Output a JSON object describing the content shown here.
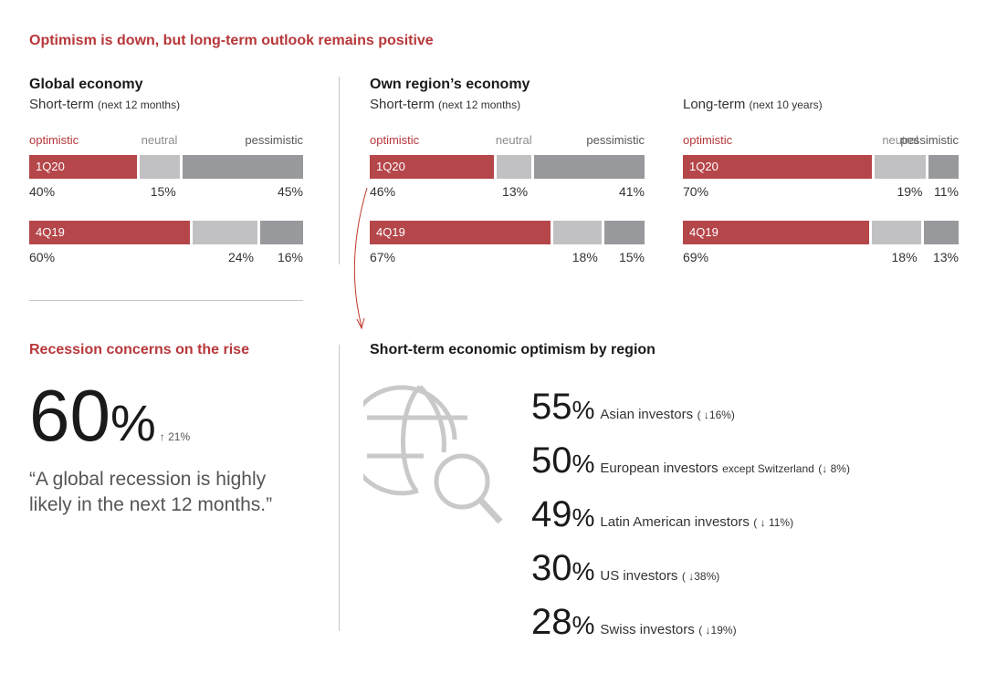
{
  "title": "Optimism is down, but long-term outlook remains positive",
  "colors": {
    "optimistic": "#b5464a",
    "neutral": "#c1c1c3",
    "pessimistic": "#98999c",
    "accent": "#b7373a"
  },
  "chart_data": [
    {
      "type": "bar",
      "stacked": true,
      "orientation": "horizontal",
      "title": "Global economy",
      "subtitle_main": "Short-term",
      "subtitle_small": "(next 12 months)",
      "categories": [
        "1Q20",
        "4Q19"
      ],
      "series_labels": [
        "optimistic",
        "neutral",
        "pessimistic"
      ],
      "series": [
        {
          "name": "optimistic",
          "values": [
            40,
            60
          ],
          "labels": [
            "40%",
            "60%"
          ]
        },
        {
          "name": "neutral",
          "values": [
            15,
            24
          ],
          "labels": [
            "15%",
            "24%"
          ]
        },
        {
          "name": "pessimistic",
          "values": [
            45,
            16
          ],
          "labels": [
            "45%",
            "16%"
          ]
        }
      ]
    },
    {
      "type": "bar",
      "stacked": true,
      "orientation": "horizontal",
      "title": "Own region’s economy",
      "subtitle_main": "Short-term",
      "subtitle_small": "(next 12 months)",
      "categories": [
        "1Q20",
        "4Q19"
      ],
      "series_labels": [
        "optimistic",
        "neutral",
        "pessimistic"
      ],
      "series": [
        {
          "name": "optimistic",
          "values": [
            46,
            67
          ],
          "labels": [
            "46%",
            "67%"
          ]
        },
        {
          "name": "neutral",
          "values": [
            13,
            18
          ],
          "labels": [
            "13%",
            "18%"
          ]
        },
        {
          "name": "pessimistic",
          "values": [
            41,
            15
          ],
          "labels": [
            "41%",
            "15%"
          ]
        }
      ]
    },
    {
      "type": "bar",
      "stacked": true,
      "orientation": "horizontal",
      "title": "",
      "subtitle_main": "Long-term",
      "subtitle_small": "(next 10 years)",
      "categories": [
        "1Q20",
        "4Q19"
      ],
      "series_labels": [
        "optimistic",
        "neutral",
        "pessimistic"
      ],
      "series": [
        {
          "name": "optimistic",
          "values": [
            70,
            69
          ],
          "labels": [
            "70%",
            "69%"
          ]
        },
        {
          "name": "neutral",
          "values": [
            19,
            18
          ],
          "labels": [
            "19%",
            "18%"
          ]
        },
        {
          "name": "pessimistic",
          "values": [
            11,
            13
          ],
          "labels": [
            "11%",
            "13%"
          ]
        }
      ]
    }
  ],
  "recession": {
    "title": "Recession concerns on the rise",
    "value": "60",
    "unit": "%",
    "change": "↑ 21%",
    "quote_line1": "“A global recession is highly",
    "quote_line2": "likely in the next 12 months.”"
  },
  "regions": {
    "title": "Short-term economic optimism by region",
    "icon": "globe-search-icon",
    "items": [
      {
        "value": "55",
        "unit": "%",
        "label": "Asian investors",
        "label_small": "",
        "change": "( ↓16%)"
      },
      {
        "value": "50",
        "unit": "%",
        "label": "European investors",
        "label_small": "except Switzerland",
        "change": "(↓ 8%)"
      },
      {
        "value": "49",
        "unit": "%",
        "label": "Latin American investors",
        "label_small": "",
        "change": "( ↓ 11%)"
      },
      {
        "value": "30",
        "unit": "%",
        "label": "US investors",
        "label_small": "",
        "change": "( ↓38%)"
      },
      {
        "value": "28",
        "unit": "%",
        "label": "Swiss investors",
        "label_small": "",
        "change": "( ↓19%)"
      }
    ]
  }
}
